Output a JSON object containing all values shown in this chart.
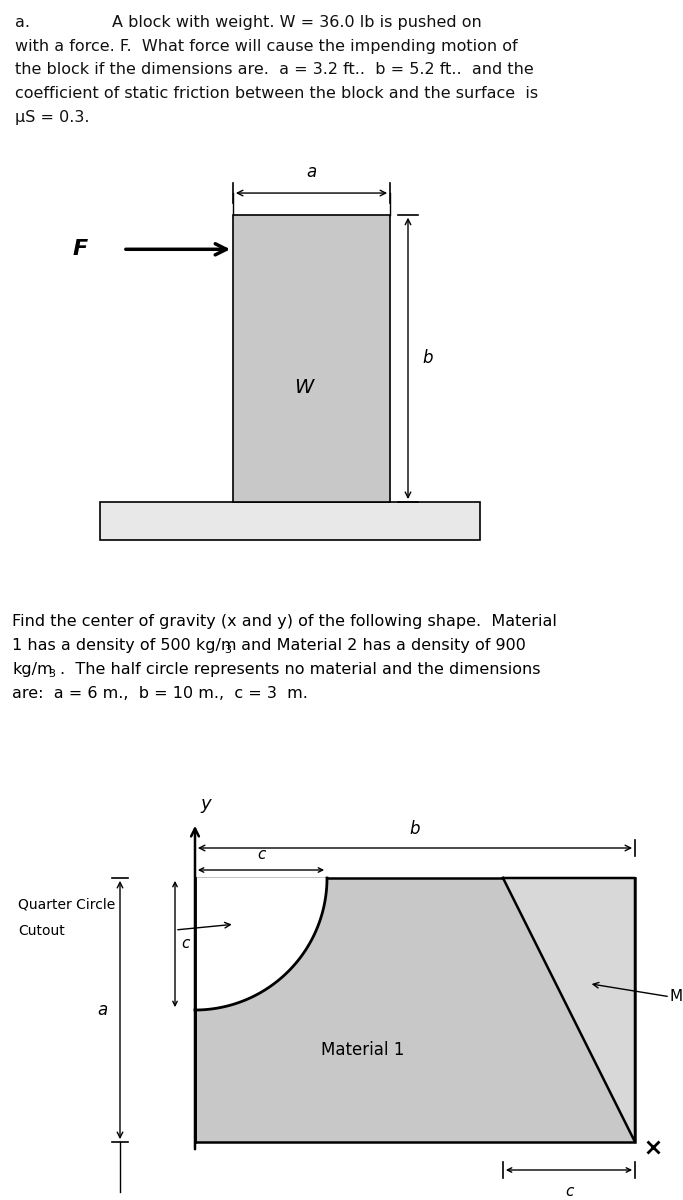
{
  "bg_color": "#ffffff",
  "divider_color": "#222222",
  "block_color": "#c8c8c8",
  "base_color": "#e8e8e8",
  "mat1_color": "#c8c8c8",
  "mat2_color": "#d8d8d8",
  "text_color": "#111111",
  "problem_a_lines": [
    [
      "a.                A block with weight. W = 36.0 lb is pushed on"
    ],
    [
      "with a force. F.  What force will cause the impending motion of"
    ],
    [
      "the block if the dimensions are.  a = 3.2 ft..  b = 5.2 ft..  and the"
    ],
    [
      "coefficient of static friction between the block and the surface  is"
    ],
    [
      "μS = 0.3."
    ]
  ],
  "p2_line1": "Find the center of gravity (x and y) of the following shape.  Material",
  "p2_line2a": "1 has a density of 500 kg/m",
  "p2_line2b": " and Material 2 has a density of 900",
  "p2_line3a": "kg/m",
  "p2_line3b": ".  The half circle represents no material and the dimensions",
  "p2_line4": "are:  a = 6 m.,  b = 10 m.,  c = 3  m.",
  "fontsize_text": 11.5,
  "fontsize_small": 8
}
